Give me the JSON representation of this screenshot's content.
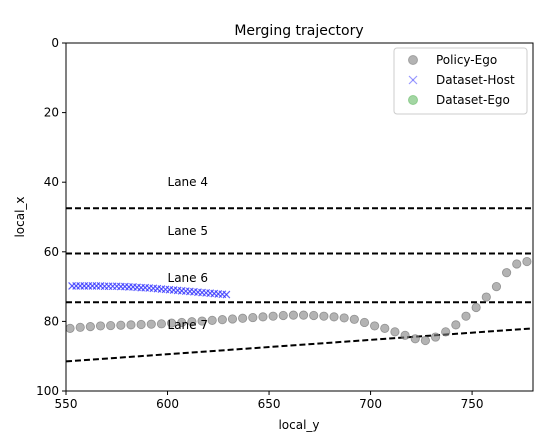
{
  "chart_data": {
    "type": "scatter",
    "title": "Merging trajectory",
    "xlabel": "local_y",
    "ylabel": "local_x",
    "xlim": [
      550,
      780
    ],
    "ylim": [
      0,
      100
    ],
    "y_inverted": true,
    "x_ticks": [
      "550",
      "600",
      "650",
      "700",
      "750"
    ],
    "y_ticks": [
      "0",
      "20",
      "40",
      "60",
      "80",
      "100"
    ],
    "grid": false,
    "legend_placement": "top-right",
    "series": [
      {
        "name": "Policy-Ego",
        "marker": "circle",
        "color": "#808080",
        "x": [
          552,
          557,
          562,
          567,
          572,
          577,
          582,
          587,
          592,
          597,
          602,
          607,
          612,
          617,
          622,
          627,
          632,
          637,
          642,
          647,
          652,
          657,
          662,
          667,
          672,
          677,
          682,
          687,
          692,
          697,
          702,
          707,
          712,
          717,
          722,
          727,
          732,
          737,
          742,
          747,
          752,
          757,
          762,
          767,
          772,
          777
        ],
        "y": [
          82.0,
          81.7,
          81.5,
          81.3,
          81.2,
          81.1,
          81.0,
          80.9,
          80.8,
          80.7,
          80.5,
          80.3,
          80.1,
          79.9,
          79.7,
          79.5,
          79.3,
          79.1,
          78.9,
          78.7,
          78.5,
          78.3,
          78.2,
          78.2,
          78.3,
          78.5,
          78.7,
          79.0,
          79.4,
          80.3,
          81.3,
          82.0,
          83.0,
          84.0,
          85.0,
          85.5,
          84.5,
          83.0,
          81.0,
          78.5,
          76.0,
          73.0,
          70.0,
          66.0,
          63.5,
          62.8
        ]
      },
      {
        "name": "Dataset-Host",
        "marker": "x",
        "color": "#3333ff",
        "x": [
          553,
          555,
          557,
          559,
          561,
          563,
          565,
          567,
          569,
          571,
          573,
          575,
          577,
          579,
          581,
          583,
          585,
          587,
          589,
          591,
          593,
          595,
          597,
          599,
          601,
          603,
          605,
          607,
          609,
          611,
          613,
          615,
          617,
          619,
          621,
          623,
          625,
          627,
          629
        ],
        "y": [
          69.8,
          69.8,
          69.8,
          69.8,
          69.8,
          69.8,
          69.8,
          69.8,
          69.9,
          69.9,
          69.9,
          69.9,
          70.0,
          70.0,
          70.1,
          70.1,
          70.2,
          70.3,
          70.3,
          70.4,
          70.5,
          70.6,
          70.7,
          70.8,
          70.9,
          71.0,
          71.1,
          71.2,
          71.3,
          71.4,
          71.5,
          71.6,
          71.7,
          71.8,
          71.9,
          72.0,
          72.1,
          72.2,
          72.3
        ]
      },
      {
        "name": "Dataset-Ego",
        "marker": "circle",
        "color": "#66bb66",
        "x": [],
        "y": []
      }
    ],
    "lane_lines": [
      {
        "x": [
          550,
          780
        ],
        "y": [
          47.5,
          47.5
        ]
      },
      {
        "x": [
          550,
          780
        ],
        "y": [
          60.5,
          60.5
        ]
      },
      {
        "x": [
          550,
          780
        ],
        "y": [
          74.5,
          74.5
        ]
      },
      {
        "x": [
          550,
          780
        ],
        "y": [
          91.5,
          82.0
        ]
      }
    ],
    "annotations": [
      {
        "text": "Lane 4",
        "x": 600,
        "y": 40
      },
      {
        "text": "Lane 5",
        "x": 600,
        "y": 54
      },
      {
        "text": "Lane 6",
        "x": 600,
        "y": 67.5
      },
      {
        "text": "Lane 7",
        "x": 600,
        "y": 81
      }
    ]
  }
}
